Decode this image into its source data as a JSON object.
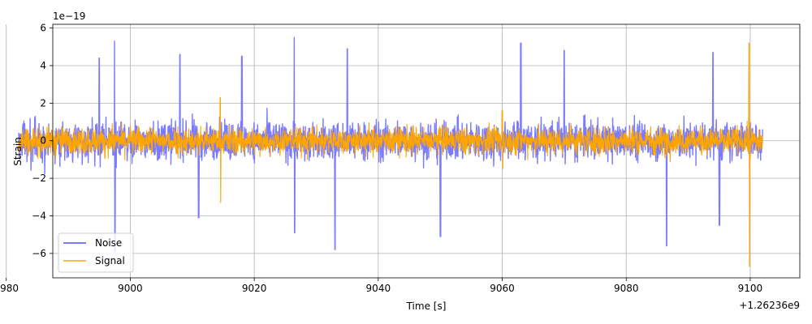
{
  "chart_data": {
    "type": "line",
    "title": "",
    "xlabel": "Time [s]",
    "ylabel": "Strain",
    "x_offset_label": "+1.26236e9",
    "y_scale_label": "1e−19",
    "xlim": [
      8987.5,
      9108.0
    ],
    "ylim": [
      -7.3,
      6.2
    ],
    "x_ticks": [
      8980,
      9000,
      9020,
      9040,
      9060,
      9080,
      9100
    ],
    "x_tick_labels": [
      "8980",
      "9000",
      "9020",
      "9040",
      "9060",
      "9080",
      "9100"
    ],
    "y_ticks": [
      -6,
      -4,
      -2,
      0,
      2,
      4,
      6
    ],
    "y_tick_labels": [
      "−6",
      "−4",
      "−2",
      "0",
      "2",
      "4",
      "6"
    ],
    "grid": true,
    "legend_position": "lower-left",
    "series": [
      {
        "name": "Noise",
        "color": "#7b7bff",
        "x_range": [
          8982,
          9102
        ],
        "typical_amplitude": 1.3,
        "peaks_high": [
          {
            "x": 8995,
            "y": 4.4
          },
          {
            "x": 8997.5,
            "y": 5.3
          },
          {
            "x": 9008,
            "y": 4.6
          },
          {
            "x": 9018,
            "y": 4.5
          },
          {
            "x": 9026.5,
            "y": 5.5
          },
          {
            "x": 9035,
            "y": 4.9
          },
          {
            "x": 9063,
            "y": 5.2
          },
          {
            "x": 9070,
            "y": 4.8
          },
          {
            "x": 9094,
            "y": 4.7
          }
        ],
        "peaks_low": [
          {
            "x": 8997.5,
            "y": -5.9
          },
          {
            "x": 9011,
            "y": -4.1
          },
          {
            "x": 9026.5,
            "y": -4.9
          },
          {
            "x": 9033,
            "y": -5.8
          },
          {
            "x": 9050,
            "y": -5.1
          },
          {
            "x": 9086.5,
            "y": -5.6
          },
          {
            "x": 9095,
            "y": -4.5
          }
        ]
      },
      {
        "name": "Signal",
        "color": "#ffa500",
        "x_range": [
          8982,
          9102
        ],
        "typical_amplitude": 0.9,
        "spikes": [
          {
            "x": 9014.5,
            "y_max": 2.3,
            "y_min": -3.3
          },
          {
            "x": 9060,
            "y_max": 1.6,
            "y_min": -1.5
          },
          {
            "x": 9099.8,
            "y_max": 5.2,
            "y_min": -6.7
          }
        ]
      }
    ]
  }
}
